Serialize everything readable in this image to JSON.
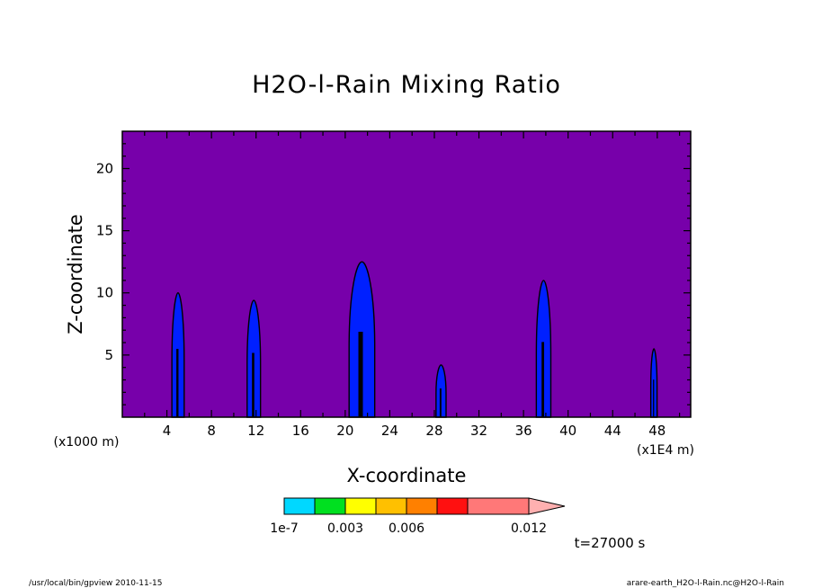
{
  "chart_data": {
    "type": "heatmap",
    "title": "H2O-l-Rain Mixing Ratio",
    "xlabel": "X-coordinate",
    "ylabel": "Z-coordinate",
    "x_unit_left": "(x1000 m)",
    "x_unit_right": "(x1E4 m)",
    "xlim": [
      0,
      51
    ],
    "ylim": [
      0,
      23
    ],
    "x_ticks": [
      4,
      8,
      12,
      16,
      20,
      24,
      28,
      32,
      36,
      40,
      44,
      48
    ],
    "y_ticks": [
      5,
      10,
      15,
      20
    ],
    "background_color": "#7700aa",
    "colorbar": {
      "levels": [
        0,
        1e-07,
        0.0015,
        0.003,
        0.0045,
        0.006,
        0.0075,
        0.009,
        0.012
      ],
      "colors": [
        "#0020ff",
        "#00d8ff",
        "#00e020",
        "#ffff00",
        "#ffc000",
        "#ff8000",
        "#ff1010",
        "#ff7878",
        "#ffb0b0"
      ],
      "labels": [
        "1e-7",
        "0.003",
        "0.006",
        "0.012"
      ],
      "extend": "max"
    },
    "features": [
      {
        "x_center": 5.0,
        "half_width": 0.55,
        "top": 10.0,
        "color": "#0020ff"
      },
      {
        "x_center": 11.8,
        "half_width": 0.6,
        "top": 9.4,
        "color": "#0020ff"
      },
      {
        "x_center": 21.5,
        "half_width": 1.15,
        "top": 12.5,
        "color": "#0020ff"
      },
      {
        "x_center": 28.6,
        "half_width": 0.45,
        "top": 4.2,
        "color": "#0020ff"
      },
      {
        "x_center": 37.8,
        "half_width": 0.65,
        "top": 11.0,
        "color": "#0020ff"
      },
      {
        "x_center": 47.7,
        "half_width": 0.28,
        "top": 5.5,
        "color": "#0020ff"
      }
    ],
    "time_label": "t=27000 s"
  },
  "footer": {
    "left": "/usr/local/bin/gpview  2010-11-15",
    "right": "arare-earth_H2O-l-Rain.nc@H2O-l-Rain"
  }
}
